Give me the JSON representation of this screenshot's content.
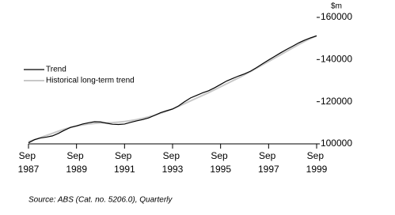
{
  "chart_data": {
    "type": "line",
    "y_unit": "$m",
    "categories": [
      "Sep 1987",
      null,
      null,
      null,
      null,
      null,
      null,
      null,
      "Sep 1989",
      null,
      null,
      null,
      null,
      null,
      null,
      null,
      "Sep 1991",
      null,
      null,
      null,
      null,
      null,
      null,
      null,
      "Sep 1993",
      null,
      null,
      null,
      null,
      null,
      null,
      null,
      "Sep 1995",
      null,
      null,
      null,
      null,
      null,
      null,
      null,
      "Sep 1997",
      null,
      null,
      null,
      null,
      null,
      null,
      null,
      "Sep 1999"
    ],
    "series": [
      {
        "name": "Trend",
        "color": "#000000",
        "values": [
          100500,
          102000,
          102800,
          103200,
          103800,
          105000,
          106500,
          107800,
          108500,
          109400,
          110000,
          110500,
          110400,
          109800,
          109300,
          109200,
          109400,
          110200,
          110900,
          111500,
          112300,
          113500,
          114800,
          115700,
          116500,
          118000,
          120000,
          121800,
          123000,
          124200,
          125200,
          126600,
          128200,
          129800,
          131000,
          132200,
          133200,
          134500,
          136200,
          138000,
          139800,
          141500,
          143200,
          144800,
          146300,
          147900,
          149200,
          150300,
          151200
        ]
      },
      {
        "name": "Historical long-term trend",
        "color": "#c8c8c8",
        "values": [
          101000,
          102000,
          103000,
          104000,
          105000,
          106000,
          107000,
          107800,
          108500,
          109000,
          109400,
          109700,
          109900,
          110000,
          110100,
          110300,
          110600,
          111000,
          111500,
          112100,
          112800,
          113600,
          114500,
          115500,
          116600,
          117800,
          119100,
          120400,
          121700,
          123000,
          124300,
          125700,
          127100,
          128500,
          129900,
          131300,
          132800,
          134300,
          135900,
          137500,
          139100,
          140700,
          142300,
          143900,
          145500,
          147100,
          148600,
          150000,
          151400
        ]
      }
    ],
    "ylim": [
      100000,
      160000
    ],
    "yticks": [
      100000,
      120000,
      140000,
      160000
    ],
    "legend": "upper left",
    "source": "Source: ABS (Cat. no. 5206.0), Quarterly"
  }
}
